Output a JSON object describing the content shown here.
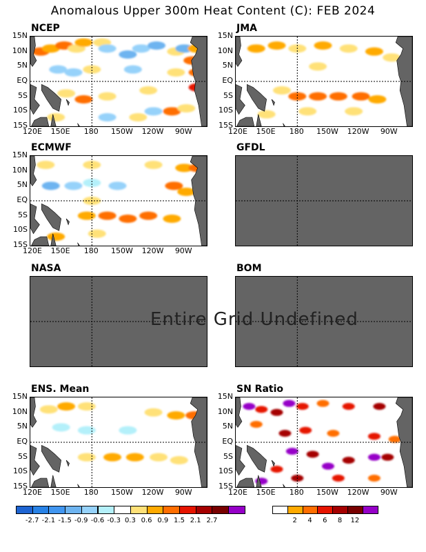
{
  "title": "Anomalous Upper 300m Heat Content (C): FEB 2024",
  "undefined_message": "Entire Grid Undefined",
  "colors": {
    "land": "#646464",
    "undefined": "#646464",
    "background": "#ffffff"
  },
  "chart_data": [
    {
      "type": "heatmap",
      "panel": "NCEP",
      "title": "NCEP",
      "data_status": "defined",
      "x_ticks": [
        "120E",
        "150E",
        "180",
        "150W",
        "120W",
        "90W"
      ],
      "y_ticks": [
        "15N",
        "10N",
        "5N",
        "EQ",
        "5S",
        "10S",
        "15S"
      ],
      "scale": "anomaly",
      "patches": [
        {
          "lon": 130,
          "lat": 10,
          "value": 1.2
        },
        {
          "lon": 140,
          "lat": 11,
          "value": 0.9
        },
        {
          "lon": 153,
          "lat": 12,
          "value": 1.5
        },
        {
          "lon": 165,
          "lat": 11,
          "value": 0.6
        },
        {
          "lon": 172,
          "lat": 13,
          "value": 0.9
        },
        {
          "lon": 190,
          "lat": 13,
          "value": 0.6
        },
        {
          "lon": 195,
          "lat": 11,
          "value": -0.6
        },
        {
          "lon": 215,
          "lat": 9,
          "value": -0.9
        },
        {
          "lon": 228,
          "lat": 11,
          "value": -0.6
        },
        {
          "lon": 243,
          "lat": 12,
          "value": -0.9
        },
        {
          "lon": 262,
          "lat": 10,
          "value": 0.6
        },
        {
          "lon": 270,
          "lat": 11,
          "value": -0.9
        },
        {
          "lon": 278,
          "lat": 7,
          "value": 1.5
        },
        {
          "lon": 282,
          "lat": 11,
          "value": 0.9
        },
        {
          "lon": 130,
          "lat": 5,
          "value": 0.3
        },
        {
          "lon": 147,
          "lat": 4,
          "value": -0.6
        },
        {
          "lon": 162,
          "lat": 3,
          "value": -0.6
        },
        {
          "lon": 180,
          "lat": 4,
          "value": 0.6
        },
        {
          "lon": 200,
          "lat": 3,
          "value": 0.3
        },
        {
          "lon": 220,
          "lat": 4,
          "value": -0.6
        },
        {
          "lon": 240,
          "lat": 3,
          "value": 0.3
        },
        {
          "lon": 262,
          "lat": 3,
          "value": 0.6
        },
        {
          "lon": 283,
          "lat": 3,
          "value": 1.5
        },
        {
          "lon": 283,
          "lat": -2,
          "value": 2.1
        },
        {
          "lon": 155,
          "lat": -4,
          "value": 0.6
        },
        {
          "lon": 172,
          "lat": -6,
          "value": 1.5
        },
        {
          "lon": 195,
          "lat": -5,
          "value": 0.6
        },
        {
          "lon": 235,
          "lat": -3,
          "value": 0.6
        },
        {
          "lon": 260,
          "lat": -6,
          "value": 0.3
        },
        {
          "lon": 258,
          "lat": -10,
          "value": 1.5
        },
        {
          "lon": 272,
          "lat": -9,
          "value": 0.6
        },
        {
          "lon": 145,
          "lat": -12,
          "value": 0.6
        },
        {
          "lon": 195,
          "lat": -12,
          "value": -0.6
        },
        {
          "lon": 225,
          "lat": -12,
          "value": 0.6
        },
        {
          "lon": 240,
          "lat": -10,
          "value": -0.6
        }
      ]
    },
    {
      "type": "heatmap",
      "panel": "JMA",
      "title": "JMA",
      "data_status": "defined",
      "x_ticks": [
        "120E",
        "150E",
        "180",
        "150W",
        "120W",
        "90W"
      ],
      "y_ticks": [
        "15N",
        "10N",
        "5N",
        "EQ",
        "5S",
        "10S",
        "15S"
      ],
      "scale": "anomaly",
      "patches": [
        {
          "lon": 140,
          "lat": 11,
          "value": 0.9
        },
        {
          "lon": 160,
          "lat": 12,
          "value": 0.9
        },
        {
          "lon": 180,
          "lat": 11,
          "value": 0.6
        },
        {
          "lon": 205,
          "lat": 12,
          "value": 0.9
        },
        {
          "lon": 230,
          "lat": 11,
          "value": 0.6
        },
        {
          "lon": 255,
          "lat": 10,
          "value": 0.9
        },
        {
          "lon": 272,
          "lat": 8,
          "value": 0.6
        },
        {
          "lon": 170,
          "lat": 4,
          "value": 0.3
        },
        {
          "lon": 200,
          "lat": 5,
          "value": 0.6
        },
        {
          "lon": 245,
          "lat": 4,
          "value": 0.3
        },
        {
          "lon": 165,
          "lat": -3,
          "value": 0.6
        },
        {
          "lon": 180,
          "lat": -5,
          "value": 1.2
        },
        {
          "lon": 200,
          "lat": -5,
          "value": 1.5
        },
        {
          "lon": 220,
          "lat": -5,
          "value": 1.5
        },
        {
          "lon": 242,
          "lat": -5,
          "value": 1.2
        },
        {
          "lon": 258,
          "lat": -6,
          "value": 0.9
        },
        {
          "lon": 190,
          "lat": -10,
          "value": 0.6
        },
        {
          "lon": 235,
          "lat": -10,
          "value": 0.6
        },
        {
          "lon": 150,
          "lat": -11,
          "value": 0.6
        }
      ]
    },
    {
      "type": "heatmap",
      "panel": "ECMWF",
      "title": "ECMWF",
      "data_status": "defined",
      "x_ticks": [
        "120E",
        "150E",
        "180",
        "150W",
        "120W",
        "90W"
      ],
      "y_ticks": [
        "15N",
        "10N",
        "5N",
        "EQ",
        "5S",
        "10S",
        "15S"
      ],
      "scale": "anomaly",
      "patches": [
        {
          "lon": 135,
          "lat": 12,
          "value": 0.6
        },
        {
          "lon": 158,
          "lat": 12,
          "value": 0.3
        },
        {
          "lon": 180,
          "lat": 12,
          "value": 0.6
        },
        {
          "lon": 200,
          "lat": 13,
          "value": 0.3
        },
        {
          "lon": 240,
          "lat": 12,
          "value": 0.6
        },
        {
          "lon": 270,
          "lat": 11,
          "value": 0.9
        },
        {
          "lon": 283,
          "lat": 11,
          "value": 1.5
        },
        {
          "lon": 140,
          "lat": 5,
          "value": -0.9
        },
        {
          "lon": 162,
          "lat": 5,
          "value": -0.6
        },
        {
          "lon": 180,
          "lat": 6,
          "value": -0.3
        },
        {
          "lon": 205,
          "lat": 5,
          "value": -0.6
        },
        {
          "lon": 260,
          "lat": 5,
          "value": 1.5
        },
        {
          "lon": 272,
          "lat": 3,
          "value": 0.9
        },
        {
          "lon": 180,
          "lat": 0,
          "value": 0.6
        },
        {
          "lon": 160,
          "lat": -1,
          "value": 0.3
        },
        {
          "lon": 175,
          "lat": -5,
          "value": 0.9
        },
        {
          "lon": 195,
          "lat": -5,
          "value": 1.5
        },
        {
          "lon": 215,
          "lat": -6,
          "value": 1.5
        },
        {
          "lon": 235,
          "lat": -5,
          "value": 1.5
        },
        {
          "lon": 258,
          "lat": -6,
          "value": 0.9
        },
        {
          "lon": 145,
          "lat": -12,
          "value": 0.9
        },
        {
          "lon": 185,
          "lat": -11,
          "value": 0.6
        },
        {
          "lon": 240,
          "lat": -11,
          "value": 0.3
        }
      ]
    },
    {
      "type": "heatmap",
      "panel": "GFDL",
      "title": "GFDL",
      "data_status": "undefined",
      "x_ticks": [],
      "y_ticks": [],
      "scale": "anomaly",
      "patches": []
    },
    {
      "type": "heatmap",
      "panel": "NASA",
      "title": "NASA",
      "data_status": "undefined",
      "x_ticks": [],
      "y_ticks": [],
      "scale": "anomaly",
      "patches": []
    },
    {
      "type": "heatmap",
      "panel": "BOM",
      "title": "BOM",
      "data_status": "undefined",
      "x_ticks": [],
      "y_ticks": [],
      "scale": "anomaly",
      "patches": []
    },
    {
      "type": "heatmap",
      "panel": "ENS_MEAN",
      "title": "ENS. Mean",
      "data_status": "defined",
      "x_ticks": [
        "120E",
        "150E",
        "180",
        "150W",
        "120W",
        "90W"
      ],
      "y_ticks": [
        "15N",
        "10N",
        "5N",
        "EQ",
        "5S",
        "10S",
        "15S"
      ],
      "scale": "anomaly",
      "patches": [
        {
          "lon": 138,
          "lat": 11,
          "value": 0.6
        },
        {
          "lon": 155,
          "lat": 12,
          "value": 0.9
        },
        {
          "lon": 175,
          "lat": 12,
          "value": 0.6
        },
        {
          "lon": 205,
          "lat": 11,
          "value": 0.3
        },
        {
          "lon": 240,
          "lat": 10,
          "value": 0.6
        },
        {
          "lon": 262,
          "lat": 9,
          "value": 0.9
        },
        {
          "lon": 280,
          "lat": 9,
          "value": 1.2
        },
        {
          "lon": 150,
          "lat": 5,
          "value": -0.3
        },
        {
          "lon": 175,
          "lat": 4,
          "value": -0.3
        },
        {
          "lon": 215,
          "lat": 4,
          "value": -0.3
        },
        {
          "lon": 175,
          "lat": -5,
          "value": 0.6
        },
        {
          "lon": 200,
          "lat": -5,
          "value": 0.9
        },
        {
          "lon": 222,
          "lat": -5,
          "value": 0.9
        },
        {
          "lon": 245,
          "lat": -5,
          "value": 0.6
        },
        {
          "lon": 265,
          "lat": -6,
          "value": 0.6
        },
        {
          "lon": 180,
          "lat": -11,
          "value": 0.3
        },
        {
          "lon": 150,
          "lat": -12,
          "value": 0.3
        }
      ]
    },
    {
      "type": "heatmap",
      "panel": "SN_RATIO",
      "title": "SN Ratio",
      "data_status": "defined",
      "x_ticks": [
        "120E",
        "150E",
        "180",
        "150W",
        "120W",
        "90W"
      ],
      "y_ticks": [
        "15N",
        "10N",
        "5N",
        "EQ",
        "5S",
        "10S",
        "15S"
      ],
      "scale": "snr",
      "patches": [
        {
          "lon": 133,
          "lat": 12,
          "value": 12
        },
        {
          "lon": 145,
          "lat": 11,
          "value": 6
        },
        {
          "lon": 160,
          "lat": 10,
          "value": 8
        },
        {
          "lon": 172,
          "lat": 13,
          "value": 12
        },
        {
          "lon": 185,
          "lat": 12,
          "value": 6
        },
        {
          "lon": 205,
          "lat": 13,
          "value": 4
        },
        {
          "lon": 230,
          "lat": 12,
          "value": 6
        },
        {
          "lon": 260,
          "lat": 12,
          "value": 8
        },
        {
          "lon": 140,
          "lat": 6,
          "value": 4
        },
        {
          "lon": 168,
          "lat": 3,
          "value": 8
        },
        {
          "lon": 188,
          "lat": 4,
          "value": 6
        },
        {
          "lon": 215,
          "lat": 3,
          "value": 4
        },
        {
          "lon": 255,
          "lat": 2,
          "value": 6
        },
        {
          "lon": 275,
          "lat": 1,
          "value": 4
        },
        {
          "lon": 175,
          "lat": -3,
          "value": 12
        },
        {
          "lon": 195,
          "lat": -4,
          "value": 8
        },
        {
          "lon": 210,
          "lat": -8,
          "value": 12
        },
        {
          "lon": 230,
          "lat": -6,
          "value": 8
        },
        {
          "lon": 255,
          "lat": -5,
          "value": 12
        },
        {
          "lon": 268,
          "lat": -5,
          "value": 8
        },
        {
          "lon": 160,
          "lat": -9,
          "value": 6
        },
        {
          "lon": 180,
          "lat": -12,
          "value": 8
        },
        {
          "lon": 145,
          "lat": -13,
          "value": 12
        },
        {
          "lon": 220,
          "lat": -12,
          "value": 6
        },
        {
          "lon": 255,
          "lat": -12,
          "value": 4
        }
      ]
    }
  ],
  "legend_anomaly": {
    "labels": [
      "-2.7",
      "-2.1",
      "-1.5",
      "-0.9",
      "-0.6",
      "-0.3",
      "0.3",
      "0.6",
      "0.9",
      "1.5",
      "2.1",
      "2.7"
    ],
    "colors": [
      "#1e64d2",
      "#2882e6",
      "#4196f0",
      "#6eb4f0",
      "#96d2fa",
      "#b4f0fa",
      "#ffffff",
      "#ffe178",
      "#ffaa00",
      "#ff6e00",
      "#e61400",
      "#a50000",
      "#780000",
      "#9600c8"
    ]
  },
  "legend_snr": {
    "labels": [
      "2",
      "4",
      "6",
      "8",
      "12"
    ],
    "colors": [
      "#ffffff",
      "#ffaa00",
      "#ff6e00",
      "#e61400",
      "#a50000",
      "#780000",
      "#9600c8"
    ]
  }
}
